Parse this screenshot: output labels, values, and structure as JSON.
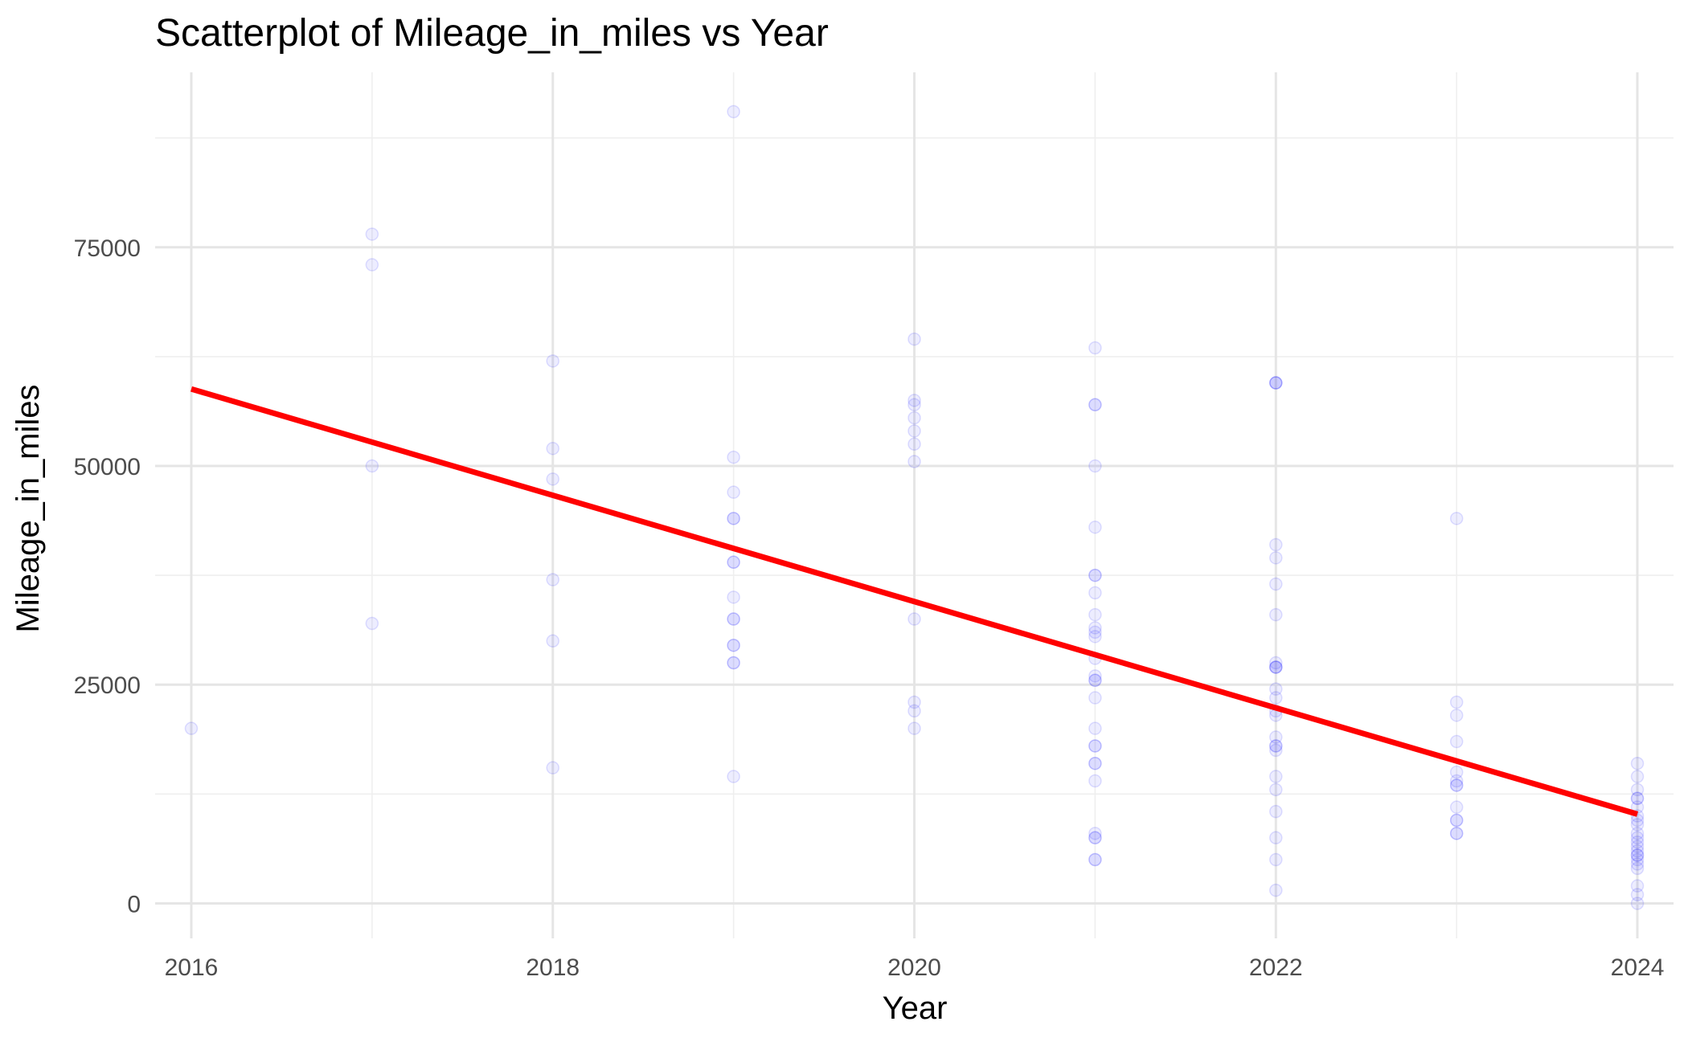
{
  "chart_data": {
    "type": "scatter",
    "title": "Scatterplot of Mileage_in_miles vs Year",
    "xlabel": "Year",
    "ylabel": "Mileage_in_miles",
    "xlim": [
      2015.8,
      2024.2
    ],
    "ylim": [
      -4000,
      95000
    ],
    "x_ticks": [
      2016,
      2018,
      2020,
      2022,
      2024
    ],
    "y_ticks": [
      0,
      25000,
      50000,
      75000
    ],
    "grid": true,
    "legend": "none",
    "colors": {
      "points": "#0000ff",
      "fit_line": "#ff0000",
      "grid_major": "#e5e5e5",
      "grid_minor": "#efefef"
    },
    "series": [
      {
        "type": "scatter",
        "points": [
          [
            2016,
            20000
          ],
          [
            2017,
            76500
          ],
          [
            2017,
            73000
          ],
          [
            2017,
            50000
          ],
          [
            2017,
            32000
          ],
          [
            2018,
            62000
          ],
          [
            2018,
            52000
          ],
          [
            2018,
            48500
          ],
          [
            2018,
            37000
          ],
          [
            2018,
            30000
          ],
          [
            2018,
            15500
          ],
          [
            2019,
            90500
          ],
          [
            2019,
            51000
          ],
          [
            2019,
            47000
          ],
          [
            2019,
            44000
          ],
          [
            2019,
            44000
          ],
          [
            2019,
            39000
          ],
          [
            2019,
            39000
          ],
          [
            2019,
            35000
          ],
          [
            2019,
            32500
          ],
          [
            2019,
            32500
          ],
          [
            2019,
            29500
          ],
          [
            2019,
            29500
          ],
          [
            2019,
            27500
          ],
          [
            2019,
            27500
          ],
          [
            2019,
            14500
          ],
          [
            2020,
            64500
          ],
          [
            2020,
            57500
          ],
          [
            2020,
            57000
          ],
          [
            2020,
            55500
          ],
          [
            2020,
            54000
          ],
          [
            2020,
            52500
          ],
          [
            2020,
            50500
          ],
          [
            2020,
            32500
          ],
          [
            2020,
            23000
          ],
          [
            2020,
            22000
          ],
          [
            2020,
            20000
          ],
          [
            2021,
            63500
          ],
          [
            2021,
            57000
          ],
          [
            2021,
            57000
          ],
          [
            2021,
            50000
          ],
          [
            2021,
            43000
          ],
          [
            2021,
            37500
          ],
          [
            2021,
            37500
          ],
          [
            2021,
            35500
          ],
          [
            2021,
            33000
          ],
          [
            2021,
            31500
          ],
          [
            2021,
            31000
          ],
          [
            2021,
            30500
          ],
          [
            2021,
            28000
          ],
          [
            2021,
            26000
          ],
          [
            2021,
            25500
          ],
          [
            2021,
            25500
          ],
          [
            2021,
            23500
          ],
          [
            2021,
            20000
          ],
          [
            2021,
            18000
          ],
          [
            2021,
            18000
          ],
          [
            2021,
            16000
          ],
          [
            2021,
            16000
          ],
          [
            2021,
            14000
          ],
          [
            2021,
            8000
          ],
          [
            2021,
            7500
          ],
          [
            2021,
            7500
          ],
          [
            2021,
            5000
          ],
          [
            2021,
            5000
          ],
          [
            2022,
            59500
          ],
          [
            2022,
            59500
          ],
          [
            2022,
            59500
          ],
          [
            2022,
            41000
          ],
          [
            2022,
            39500
          ],
          [
            2022,
            36500
          ],
          [
            2022,
            33000
          ],
          [
            2022,
            27500
          ],
          [
            2022,
            27000
          ],
          [
            2022,
            27000
          ],
          [
            2022,
            27000
          ],
          [
            2022,
            24500
          ],
          [
            2022,
            23500
          ],
          [
            2022,
            22000
          ],
          [
            2022,
            21500
          ],
          [
            2022,
            19000
          ],
          [
            2022,
            18000
          ],
          [
            2022,
            18000
          ],
          [
            2022,
            17500
          ],
          [
            2022,
            14500
          ],
          [
            2022,
            13000
          ],
          [
            2022,
            10500
          ],
          [
            2022,
            7500
          ],
          [
            2022,
            5000
          ],
          [
            2022,
            1500
          ],
          [
            2023,
            44000
          ],
          [
            2023,
            23000
          ],
          [
            2023,
            21500
          ],
          [
            2023,
            18500
          ],
          [
            2023,
            15000
          ],
          [
            2023,
            14000
          ],
          [
            2023,
            13500
          ],
          [
            2023,
            13500
          ],
          [
            2023,
            11000
          ],
          [
            2023,
            9500
          ],
          [
            2023,
            9500
          ],
          [
            2023,
            8000
          ],
          [
            2023,
            8000
          ],
          [
            2024,
            16000
          ],
          [
            2024,
            14500
          ],
          [
            2024,
            13000
          ],
          [
            2024,
            12000
          ],
          [
            2024,
            12000
          ],
          [
            2024,
            11000
          ],
          [
            2024,
            10000
          ],
          [
            2024,
            9500
          ],
          [
            2024,
            9000
          ],
          [
            2024,
            8000
          ],
          [
            2024,
            7500
          ],
          [
            2024,
            7000
          ],
          [
            2024,
            6500
          ],
          [
            2024,
            6000
          ],
          [
            2024,
            5500
          ],
          [
            2024,
            5500
          ],
          [
            2024,
            5000
          ],
          [
            2024,
            4500
          ],
          [
            2024,
            4000
          ],
          [
            2024,
            2000
          ],
          [
            2024,
            1000
          ],
          [
            2024,
            0
          ]
        ]
      },
      {
        "type": "line",
        "points": [
          [
            2016,
            58800
          ],
          [
            2024,
            10200
          ]
        ]
      }
    ]
  }
}
